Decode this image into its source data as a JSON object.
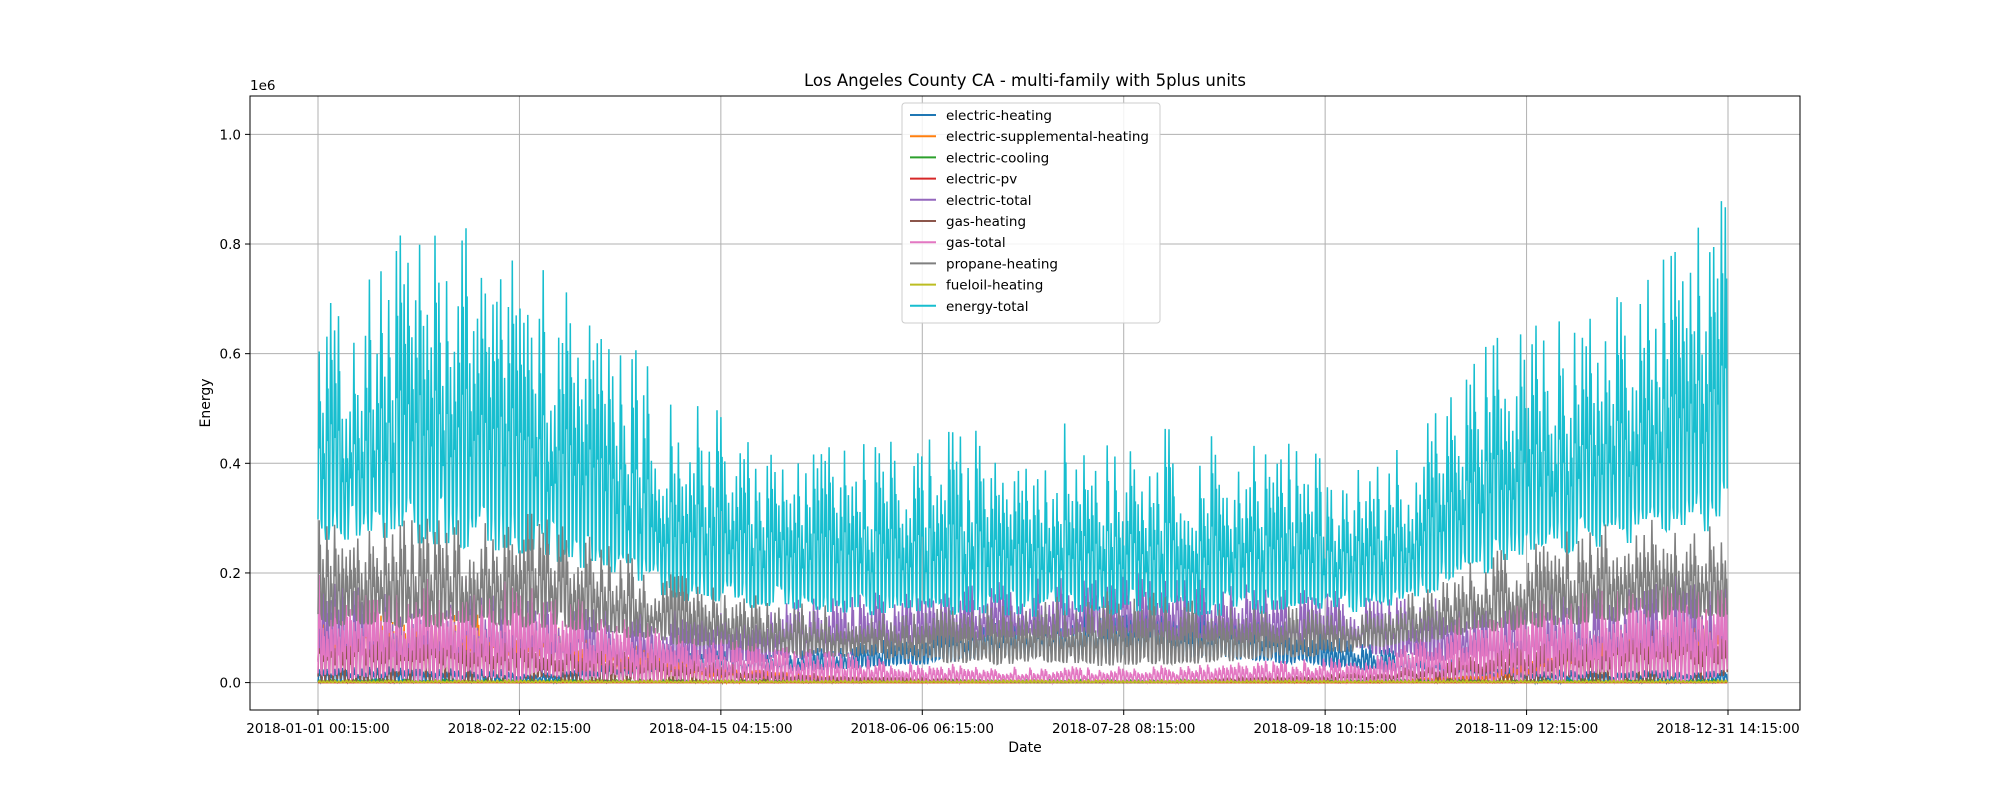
{
  "chart_data": {
    "type": "line",
    "title": "Los Angeles County CA - multi-family with 5plus units",
    "xlabel": "Date",
    "ylabel": "Energy",
    "y_offset_text": "1e6",
    "ylim": [
      -0.05,
      1.07
    ],
    "y_ticks": [
      0.0,
      0.2,
      0.4,
      0.6,
      0.8,
      1.0
    ],
    "y_tick_labels": [
      "0.0",
      "0.2",
      "0.4",
      "0.6",
      "0.8",
      "1.0"
    ],
    "x_range": [
      "2018-01-01 00:15:00",
      "2018-12-31 14:15:00"
    ],
    "x_ticks": [
      "2018-01-01 00:15:00",
      "2018-02-22 02:15:00",
      "2018-04-15 04:15:00",
      "2018-06-06 06:15:00",
      "2018-07-28 08:15:00",
      "2018-09-18 10:15:00",
      "2018-11-09 12:15:00",
      "2018-12-31 14:15:00"
    ],
    "grid": true,
    "legend_position": "top-center",
    "series": [
      {
        "name": "electric-heating",
        "color": "#1f77b4",
        "envelope_months": [
          0,
          1,
          2,
          3,
          4,
          5,
          6,
          7,
          8,
          9,
          10,
          11,
          12
        ],
        "peak": [
          0.03,
          0.03,
          0.02,
          0.06,
          0.06,
          0.09,
          0.13,
          0.15,
          0.12,
          0.07,
          0.03,
          0.02,
          0.03
        ],
        "base": [
          0.0,
          0.0,
          0.0,
          0.01,
          0.02,
          0.03,
          0.05,
          0.05,
          0.04,
          0.02,
          0.0,
          0.0,
          0.0
        ]
      },
      {
        "name": "electric-supplemental-heating",
        "color": "#ff7f0e",
        "envelope_months": [
          0,
          1,
          2,
          3,
          4,
          5,
          6,
          7,
          8,
          9,
          10,
          11,
          12
        ],
        "peak": [
          0.15,
          0.13,
          0.12,
          0.05,
          0.02,
          0.0,
          0.0,
          0.0,
          0.0,
          0.0,
          0.02,
          0.1,
          0.14
        ],
        "base": [
          0.03,
          0.02,
          0.02,
          0.0,
          0.0,
          0.0,
          0.0,
          0.0,
          0.0,
          0.0,
          0.0,
          0.02,
          0.03
        ]
      },
      {
        "name": "electric-cooling",
        "color": "#2ca02c",
        "envelope_months": [
          0,
          12
        ],
        "peak": [
          0.005,
          0.005
        ],
        "base": [
          0.0,
          0.0
        ]
      },
      {
        "name": "electric-pv",
        "color": "#d62728",
        "envelope_months": [
          0,
          12
        ],
        "peak": [
          0.0,
          0.0
        ],
        "base": [
          0.0,
          0.0
        ]
      },
      {
        "name": "electric-total",
        "color": "#9467bd",
        "envelope_months": [
          0,
          1,
          2,
          3,
          4,
          5,
          6,
          7,
          8,
          9,
          10,
          11,
          12
        ],
        "peak": [
          0.2,
          0.17,
          0.15,
          0.14,
          0.15,
          0.17,
          0.19,
          0.2,
          0.18,
          0.16,
          0.15,
          0.19,
          0.21
        ],
        "base": [
          0.02,
          0.02,
          0.02,
          0.03,
          0.04,
          0.06,
          0.08,
          0.08,
          0.07,
          0.05,
          0.03,
          0.02,
          0.02
        ]
      },
      {
        "name": "gas-heating",
        "color": "#8c564b",
        "envelope_months": [
          0,
          1,
          2,
          3,
          4,
          5,
          6,
          7,
          8,
          9,
          10,
          11,
          12
        ],
        "peak": [
          0.12,
          0.1,
          0.09,
          0.05,
          0.02,
          0.01,
          0.0,
          0.0,
          0.01,
          0.02,
          0.06,
          0.1,
          0.13
        ],
        "base": [
          0.0,
          0.0,
          0.0,
          0.0,
          0.0,
          0.0,
          0.0,
          0.0,
          0.0,
          0.0,
          0.0,
          0.0,
          0.0
        ]
      },
      {
        "name": "gas-total",
        "color": "#e377c2",
        "envelope_months": [
          0,
          1,
          2,
          3,
          4,
          5,
          6,
          7,
          8,
          9,
          10,
          11,
          12
        ],
        "peak": [
          0.2,
          0.2,
          0.18,
          0.09,
          0.07,
          0.04,
          0.03,
          0.03,
          0.04,
          0.05,
          0.15,
          0.18,
          0.2
        ],
        "base": [
          0.0,
          0.0,
          0.0,
          0.0,
          0.0,
          0.0,
          0.0,
          0.0,
          0.0,
          0.0,
          0.0,
          0.0,
          0.0
        ]
      },
      {
        "name": "propane-heating",
        "color": "#7f7f7f",
        "envelope_months": [
          0,
          1,
          2,
          3,
          4,
          5,
          6,
          7,
          8,
          9,
          10,
          11,
          12
        ],
        "peak": [
          0.3,
          0.3,
          0.32,
          0.2,
          0.15,
          0.13,
          0.16,
          0.17,
          0.14,
          0.14,
          0.24,
          0.3,
          0.32
        ],
        "base": [
          0.1,
          0.1,
          0.1,
          0.07,
          0.05,
          0.04,
          0.03,
          0.03,
          0.04,
          0.06,
          0.09,
          0.11,
          0.12
        ]
      },
      {
        "name": "fueloil-heating",
        "color": "#bcbd22",
        "envelope_months": [
          0,
          12
        ],
        "peak": [
          0.004,
          0.004
        ],
        "base": [
          0.0,
          0.0
        ]
      },
      {
        "name": "energy-total",
        "color": "#17becf",
        "envelope_months": [
          0,
          1,
          2,
          3,
          4,
          5,
          6,
          7,
          8,
          9,
          10,
          11,
          12
        ],
        "peak": [
          0.7,
          0.9,
          0.75,
          0.55,
          0.42,
          0.45,
          0.48,
          0.47,
          0.45,
          0.4,
          0.65,
          0.7,
          0.9
        ],
        "base": [
          0.25,
          0.25,
          0.22,
          0.15,
          0.13,
          0.12,
          0.12,
          0.12,
          0.12,
          0.13,
          0.2,
          0.25,
          0.28
        ]
      }
    ]
  }
}
